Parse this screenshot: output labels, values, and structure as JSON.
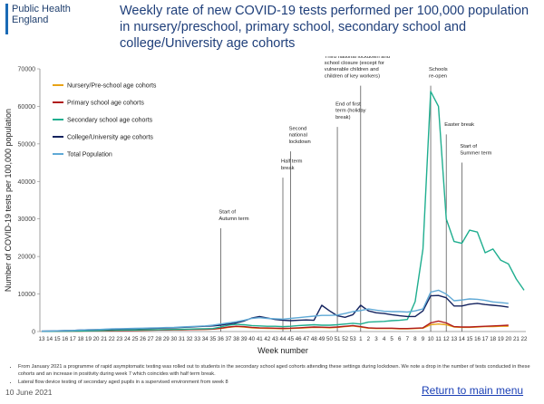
{
  "header": {
    "logo_line1": "Public Health",
    "logo_line2": "England",
    "title": "Weekly rate of new COVID-19 tests performed per 100,000 population in nursery/preschool, primary school, secondary school and college/University age cohorts"
  },
  "notes": [
    "From January 2021 a programme of rapid asymptomatic testing was rolled out to students in the secondary school aged cohorts attending these settings during lockdown. We note a drop in the number of tests conducted in these cohorts and an increase in positivity during week 7 which coincides with half term break.",
    "Lateral flow device testing of secondary aged pupils in a supervised environment from week 8"
  ],
  "footer": {
    "date": "10 June 2021",
    "return_link": "Return to main menu"
  },
  "chart_data": {
    "type": "line",
    "title": "",
    "xlabel": "Week number",
    "ylabel": "Number of COVID-19 tests per 100,000 population",
    "ylim": [
      0,
      70000
    ],
    "yticks": [
      "0",
      "10000",
      "20000",
      "30000",
      "40000",
      "50000",
      "60000",
      "70000"
    ],
    "grid": false,
    "legend_position": "top-left",
    "categories": [
      "13",
      "14",
      "15",
      "16",
      "17",
      "18",
      "19",
      "20",
      "21",
      "22",
      "23",
      "24",
      "25",
      "26",
      "27",
      "28",
      "29",
      "30",
      "31",
      "32",
      "33",
      "34",
      "35",
      "36",
      "37",
      "38",
      "39",
      "40",
      "41",
      "42",
      "43",
      "44",
      "45",
      "46",
      "47",
      "48",
      "49",
      "50",
      "51",
      "52",
      "53",
      "1",
      "2",
      "3",
      "4",
      "5",
      "6",
      "7",
      "8",
      "9",
      "10",
      "11",
      "12",
      "13",
      "14",
      "15",
      "16",
      "17",
      "18",
      "19",
      "20",
      "21",
      "22"
    ],
    "series": [
      {
        "name": "Nursery/Pre-school age cohorts",
        "color": "#e8a317",
        "values": [
          50,
          60,
          70,
          80,
          100,
          150,
          180,
          200,
          220,
          250,
          270,
          290,
          320,
          350,
          380,
          400,
          420,
          450,
          480,
          520,
          560,
          600,
          650,
          800,
          1100,
          1300,
          1200,
          1000,
          900,
          850,
          800,
          750,
          800,
          900,
          1000,
          1100,
          1050,
          1000,
          1100,
          1300,
          1500,
          1200,
          900,
          800,
          800,
          800,
          700,
          700,
          800,
          900,
          1800,
          2000,
          1800,
          1200,
          1100,
          1100,
          1200,
          1300,
          1300,
          1400,
          1400,
          null,
          null
        ]
      },
      {
        "name": "Primary school age cohorts",
        "color": "#b01c1c",
        "values": [
          50,
          60,
          70,
          80,
          100,
          150,
          180,
          200,
          220,
          250,
          270,
          290,
          320,
          350,
          380,
          400,
          420,
          450,
          480,
          520,
          560,
          600,
          650,
          900,
          1200,
          1400,
          1300,
          1100,
          1000,
          950,
          900,
          850,
          900,
          1000,
          1100,
          1200,
          1150,
          1100,
          1200,
          1400,
          1600,
          1300,
          1000,
          900,
          900,
          900,
          800,
          800,
          900,
          1000,
          2300,
          2800,
          2300,
          1300,
          1200,
          1200,
          1300,
          1400,
          1500,
          1600,
          1700,
          null,
          null
        ]
      },
      {
        "name": "Secondary school age cohorts",
        "color": "#1fae8f",
        "values": [
          50,
          60,
          70,
          80,
          100,
          150,
          200,
          250,
          300,
          350,
          380,
          400,
          420,
          450,
          480,
          500,
          520,
          550,
          600,
          650,
          700,
          750,
          800,
          1200,
          1700,
          1900,
          1800,
          1600,
          1500,
          1400,
          1400,
          1300,
          1400,
          1600,
          1700,
          1800,
          1700,
          1700,
          1800,
          2000,
          2200,
          2000,
          2500,
          2600,
          2700,
          2900,
          3000,
          3200,
          8000,
          22000,
          64000,
          60000,
          30000,
          24000,
          23500,
          27000,
          26500,
          21000,
          22000,
          19000,
          18000,
          14000,
          11000
        ]
      },
      {
        "name": "College/University age cohorts",
        "color": "#14235f",
        "values": [
          100,
          150,
          200,
          250,
          300,
          400,
          450,
          500,
          550,
          600,
          650,
          700,
          750,
          800,
          850,
          900,
          950,
          1000,
          1100,
          1200,
          1300,
          1400,
          1500,
          1700,
          2000,
          2300,
          2800,
          3600,
          4000,
          3600,
          3200,
          3000,
          2900,
          3000,
          3100,
          3000,
          7000,
          5500,
          4200,
          3800,
          4500,
          7000,
          5500,
          5000,
          4800,
          4500,
          4200,
          4000,
          4000,
          5500,
          9500,
          9600,
          9000,
          6800,
          6800,
          7300,
          7500,
          7200,
          7000,
          6800,
          6500,
          null,
          null
        ]
      },
      {
        "name": "Total Population",
        "color": "#5fa9d6",
        "values": [
          100,
          150,
          200,
          250,
          300,
          400,
          450,
          500,
          600,
          700,
          750,
          800,
          850,
          900,
          950,
          1000,
          1050,
          1100,
          1200,
          1300,
          1400,
          1500,
          1700,
          2000,
          2300,
          2600,
          3000,
          3500,
          3700,
          3500,
          3400,
          3300,
          3500,
          3700,
          3900,
          4100,
          4300,
          4300,
          4400,
          4800,
          5300,
          5600,
          6000,
          5700,
          5400,
          5300,
          5300,
          5200,
          5500,
          6000,
          10500,
          11000,
          10000,
          8200,
          8400,
          8700,
          8600,
          8300,
          7900,
          7700,
          7500,
          null,
          null
        ]
      }
    ],
    "annotations": [
      {
        "week_index": 23,
        "text": "Start of Autumn term",
        "y": 28000
      },
      {
        "week_index": 31,
        "text": "Half term break",
        "y": 41500
      },
      {
        "week_index": 32,
        "text": "Second national lockdown",
        "y": 48500
      },
      {
        "week_index": 38,
        "text": "End of first term (holiday break)",
        "y": 55000
      },
      {
        "week_index": 41,
        "text": "Third national lockdown and school closure (except for vulnerable children and children of key workers)",
        "y": 66000
      },
      {
        "week_index": 50,
        "text": "Schools re-open",
        "y": 66000
      },
      {
        "week_index": 52,
        "text": "Easter break",
        "y": 53000
      },
      {
        "week_index": 54,
        "text": "Start of Summer term",
        "y": 45500
      }
    ]
  }
}
